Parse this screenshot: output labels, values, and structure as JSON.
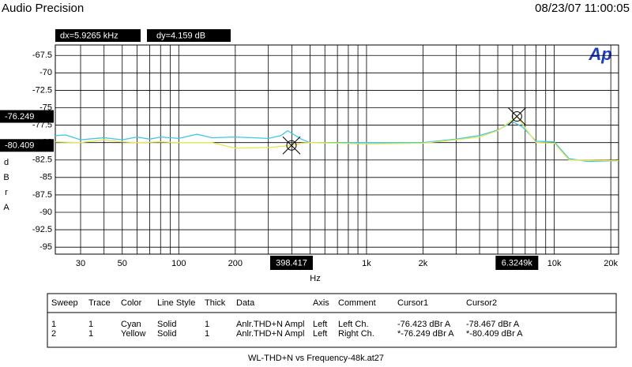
{
  "header": {
    "title": "Audio Precision",
    "timestamp": "08/23/07 11:00:05",
    "dx": "dx=5.9265 kHz",
    "dy": "dy=4.159  dB",
    "logo": "Ap"
  },
  "chart_data": {
    "type": "line",
    "log_x": true,
    "grid": true,
    "xlabel": "Hz",
    "ylabel": "dBrA",
    "xlim": [
      22,
      22000
    ],
    "ylim": [
      -96,
      -66
    ],
    "xticks": [
      30,
      50,
      100,
      200,
      {
        "value": 1000,
        "label": "1k"
      },
      {
        "value": 2000,
        "label": "2k"
      },
      {
        "value": 10000,
        "label": "10k"
      },
      {
        "value": 20000,
        "label": "20k"
      }
    ],
    "xminor": [
      40,
      60,
      70,
      80,
      90,
      300,
      400,
      500,
      600,
      700,
      800,
      900,
      3000,
      4000,
      5000,
      6000,
      7000,
      8000,
      9000
    ],
    "yticks": [
      -67.5,
      -70,
      -72.5,
      -75,
      -77.5,
      -80,
      -82.5,
      -85,
      -87.5,
      -90,
      -92.5,
      -95
    ],
    "series": [
      {
        "name": "Cyan",
        "color": "#3cc8e8",
        "x": [
          22,
          25,
          30,
          40,
          50,
          60,
          70,
          80,
          100,
          125,
          150,
          200,
          300,
          350,
          380,
          450,
          500,
          1000,
          2000,
          3000,
          4000,
          5000,
          6000,
          6800,
          8000,
          10000,
          12000,
          15000,
          22000
        ],
        "values": [
          -79.0,
          -78.9,
          -79.6,
          -79.3,
          -79.6,
          -79.2,
          -79.5,
          -79.2,
          -79.4,
          -78.8,
          -79.3,
          -79.2,
          -79.4,
          -79.0,
          -78.3,
          -79.5,
          -80.0,
          -80.0,
          -80.0,
          -79.5,
          -79.0,
          -78.2,
          -77.0,
          -77.8,
          -79.8,
          -79.9,
          -82.3,
          -82.7,
          -82.6
        ]
      },
      {
        "name": "Yellow",
        "color": "#e8e850",
        "x": [
          22,
          30,
          40,
          50,
          60,
          80,
          100,
          150,
          200,
          300,
          398.417,
          450,
          500,
          1000,
          2000,
          3000,
          4000,
          5000,
          6324.9,
          7000,
          8000,
          10000,
          12000,
          22000
        ],
        "values": [
          -79.9,
          -80.0,
          -79.6,
          -79.9,
          -80.0,
          -79.9,
          -80.0,
          -80.0,
          -80.8,
          -80.7,
          -80.409,
          -80.1,
          -80.0,
          -80.2,
          -80.1,
          -79.6,
          -79.2,
          -78.3,
          -76.249,
          -77.9,
          -80.0,
          -80.1,
          -82.5,
          -82.6
        ]
      }
    ],
    "cursors": [
      {
        "x": 398.417,
        "y": -80.409
      },
      {
        "x": {
          "value": 6324.9,
          "label": "6.3249k"
        },
        "y": -76.249
      }
    ]
  },
  "table": {
    "header": [
      "Sweep",
      "Trace",
      "Color",
      "Line Style",
      "Thick",
      "Data",
      "Axis",
      "Comment",
      "Cursor1",
      "Cursor2"
    ],
    "rows": [
      [
        "1",
        "1",
        "Cyan",
        "Solid",
        "1",
        "Anlr.THD+N Ampl",
        "Left",
        "Left Ch.",
        "-76.423  dBr A",
        "-78.467  dBr A"
      ],
      [
        "2",
        "1",
        "Yellow",
        "Solid",
        "1",
        "Anlr.THD+N Ampl",
        "Left",
        "Right Ch.",
        "*-76.249  dBr A",
        "*-80.409  dBr A"
      ]
    ]
  },
  "footer": "WL-THD+N vs Frequency-48k.at27"
}
